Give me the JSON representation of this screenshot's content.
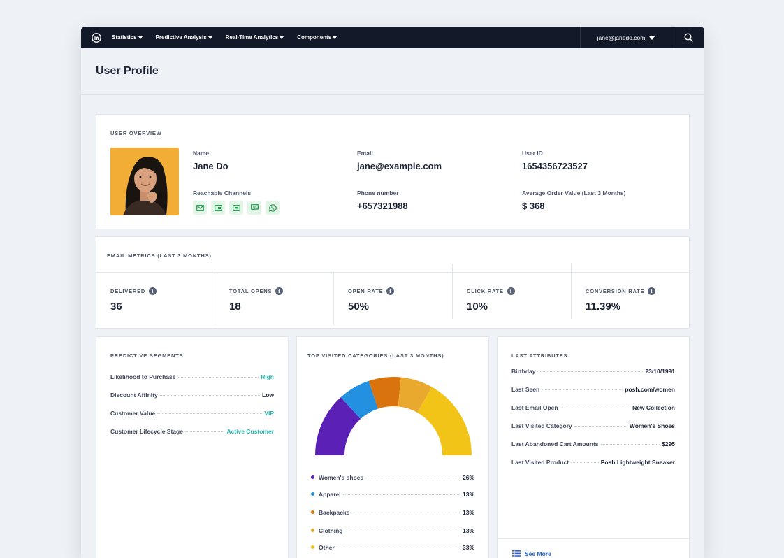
{
  "nav": {
    "items": [
      {
        "label": "Statistics"
      },
      {
        "label": "Predictive Analysis"
      },
      {
        "label": "Real-Time Analytics"
      },
      {
        "label": "Components"
      }
    ],
    "user_email": "jane@janedo.com"
  },
  "page": {
    "title": "User Profile"
  },
  "overview": {
    "label": "USER OVERVIEW",
    "name_label": "Name",
    "name": "Jane Do",
    "email_label": "Email",
    "email": "jane@example.com",
    "userid_label": "User ID",
    "userid": "1654356723527",
    "channels_label": "Reachable Channels",
    "channels": [
      "mail-icon",
      "web-push-icon",
      "mobile-push-icon",
      "sms-icon",
      "whatsapp-icon"
    ],
    "phone_label": "Phone number",
    "phone": "+657321988",
    "aov_label": "Average Order Value (Last 3 Months)",
    "aov": "$ 368"
  },
  "metrics": {
    "label": "EMAIL METRICS (LAST 3 MONTHS)",
    "items": [
      {
        "label": "DELIVERED",
        "value": "36"
      },
      {
        "label": "TOTAL OPENS",
        "value": "18"
      },
      {
        "label": "OPEN RATE",
        "value": "50%"
      },
      {
        "label": "CLICK RATE",
        "value": "10%"
      },
      {
        "label": "CONVERSION RATE",
        "value": "11.39%"
      }
    ]
  },
  "segments": {
    "label": "PREDICTIVE SEGMENTS",
    "rows": [
      {
        "key": "Likelihood to Purchase",
        "value": "High"
      },
      {
        "key": "Discount Affinity",
        "value": "Low"
      },
      {
        "key": "Customer Value",
        "value": "VIP"
      },
      {
        "key": "Customer Lifecycle Stage",
        "value": "Active Customer"
      }
    ]
  },
  "categories": {
    "label": "TOP VISITED CATEGORIES (LAST 3 MONTHS)",
    "rows": [
      {
        "key": "Women's shoes",
        "value": "26%",
        "color": "#5b21b6",
        "pct": 26
      },
      {
        "key": "Apparel",
        "value": "13%",
        "color": "#2490e0",
        "pct": 13
      },
      {
        "key": "Backpacks",
        "value": "13%",
        "color": "#d9730d",
        "pct": 13
      },
      {
        "key": "Clothing",
        "value": "13%",
        "color": "#e8a92e",
        "pct": 13
      },
      {
        "key": "Other",
        "value": "33%",
        "color": "#f2c418",
        "pct": 33
      }
    ]
  },
  "attributes": {
    "label": "LAST ATTRIBUTES",
    "rows": [
      {
        "key": "Birthday",
        "value": "23/10/1991"
      },
      {
        "key": "Last Seen",
        "value": "posh.com/women"
      },
      {
        "key": "Last Email Open",
        "value": "New Collection"
      },
      {
        "key": "Last Visited Category",
        "value": "Women's Shoes"
      },
      {
        "key": "Last Abandoned Cart Amounts",
        "value": "$295"
      },
      {
        "key": "Last Visited Product",
        "value": "Posh Lightweight Sneaker"
      }
    ],
    "see_more": "See More"
  }
}
